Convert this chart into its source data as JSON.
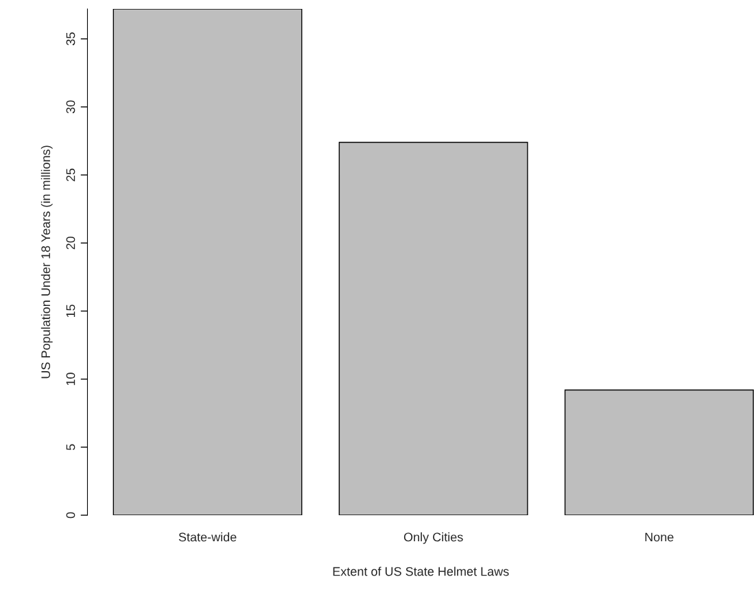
{
  "chart_data": {
    "type": "bar",
    "xlabel": "Extent of US State Helmet Laws",
    "ylabel": "US Population Under 18 Years (in millions)",
    "categories": [
      "State-wide",
      "Only Cities",
      "None"
    ],
    "values": [
      37.2,
      27.4,
      9.2
    ],
    "color": "#bebebe",
    "ylim": [
      0,
      37.2
    ],
    "yticks": [
      0,
      5,
      10,
      15,
      20,
      25,
      30,
      35
    ],
    "grid": false
  }
}
